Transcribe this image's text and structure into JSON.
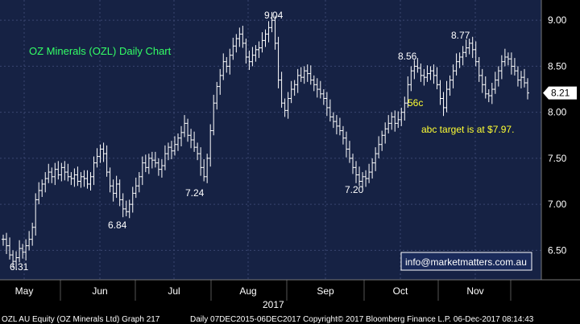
{
  "chart_data": {
    "type": "ohlc",
    "title": "OZ Minerals (OZL) Daily Chart",
    "ylim": [
      6.18,
      9.22
    ],
    "y_ticks": [
      "6.50",
      "7.00",
      "7.50",
      "8.00",
      "8.50",
      "9.00"
    ],
    "x_ticks": [
      "May",
      "Jun",
      "Jul",
      "Aug",
      "Sep",
      "Oct",
      "Nov"
    ],
    "year_label": "2017",
    "last_price": "8.21",
    "annotations": [
      {
        "text": "6.31",
        "value": 6.31,
        "style": "white"
      },
      {
        "text": "6.84",
        "value": 6.84,
        "style": "white"
      },
      {
        "text": "7.24",
        "value": 7.24,
        "style": "white"
      },
      {
        "text": "9.04",
        "value": 9.04,
        "style": "white"
      },
      {
        "text": "7.20",
        "value": 7.2,
        "style": "white"
      },
      {
        "text": "8.56",
        "value": 8.56,
        "style": "white"
      },
      {
        "text": "8.77",
        "value": 8.77,
        "style": "white"
      },
      {
        "text": "56c",
        "style": "yellow"
      },
      {
        "text": "abc target is at $7.97.",
        "style": "yellow"
      }
    ],
    "close_series": [
      6.62,
      6.55,
      6.45,
      6.38,
      6.42,
      6.52,
      6.48,
      6.55,
      6.62,
      6.75,
      7.05,
      7.15,
      7.22,
      7.28,
      7.35,
      7.3,
      7.38,
      7.32,
      7.4,
      7.35,
      7.3,
      7.28,
      7.32,
      7.25,
      7.3,
      7.28,
      7.22,
      7.3,
      7.45,
      7.52,
      7.6,
      7.55,
      7.35,
      7.2,
      7.12,
      7.22,
      7.05,
      6.95,
      6.92,
      7.0,
      7.12,
      7.2,
      7.3,
      7.45,
      7.4,
      7.5,
      7.48,
      7.45,
      7.38,
      7.42,
      7.55,
      7.62,
      7.58,
      7.65,
      7.72,
      7.78,
      7.88,
      7.75,
      7.7,
      7.62,
      7.55,
      7.4,
      7.3,
      7.5,
      7.8,
      8.1,
      8.28,
      8.4,
      8.55,
      8.5,
      8.62,
      8.72,
      8.8,
      8.85,
      8.75,
      8.6,
      8.55,
      8.62,
      8.68,
      8.7,
      8.78,
      8.85,
      8.92,
      9.0,
      8.75,
      8.35,
      8.1,
      8.02,
      8.15,
      8.25,
      8.3,
      8.4,
      8.38,
      8.45,
      8.42,
      8.35,
      8.3,
      8.25,
      8.2,
      8.15,
      8.05,
      7.95,
      7.9,
      7.85,
      7.8,
      7.72,
      7.6,
      7.5,
      7.4,
      7.32,
      7.25,
      7.3,
      7.28,
      7.35,
      7.45,
      7.55,
      7.65,
      7.75,
      7.82,
      7.88,
      7.95,
      7.88,
      7.92,
      8.0,
      8.1,
      8.3,
      8.45,
      8.5,
      8.48,
      8.4,
      8.38,
      8.42,
      8.45,
      8.4,
      8.3,
      8.15,
      8.05,
      8.25,
      8.35,
      8.45,
      8.55,
      8.6,
      8.65,
      8.7,
      8.75,
      8.68,
      8.55,
      8.4,
      8.3,
      8.2,
      8.18,
      8.25,
      8.35,
      8.45,
      8.55,
      8.6,
      8.58,
      8.5,
      8.45,
      8.35,
      8.38,
      8.32,
      8.21
    ],
    "footer_left": "OZL AU Equity (OZ Minerals Ltd) Graph 217",
    "footer_right": "Daily 07DEC2015-06DEC2017 Copyright© 2017 Bloomberg Finance L.P.  06-Dec-2017 08:14:43",
    "email": "info@marketmatters.com.au"
  },
  "colors": {
    "background": "#000000",
    "plot_bg": "#162244",
    "grid": "#3a4670",
    "bars": "#ffffff",
    "title": "#33ff66",
    "annotation_yellow": "#ffff33"
  }
}
